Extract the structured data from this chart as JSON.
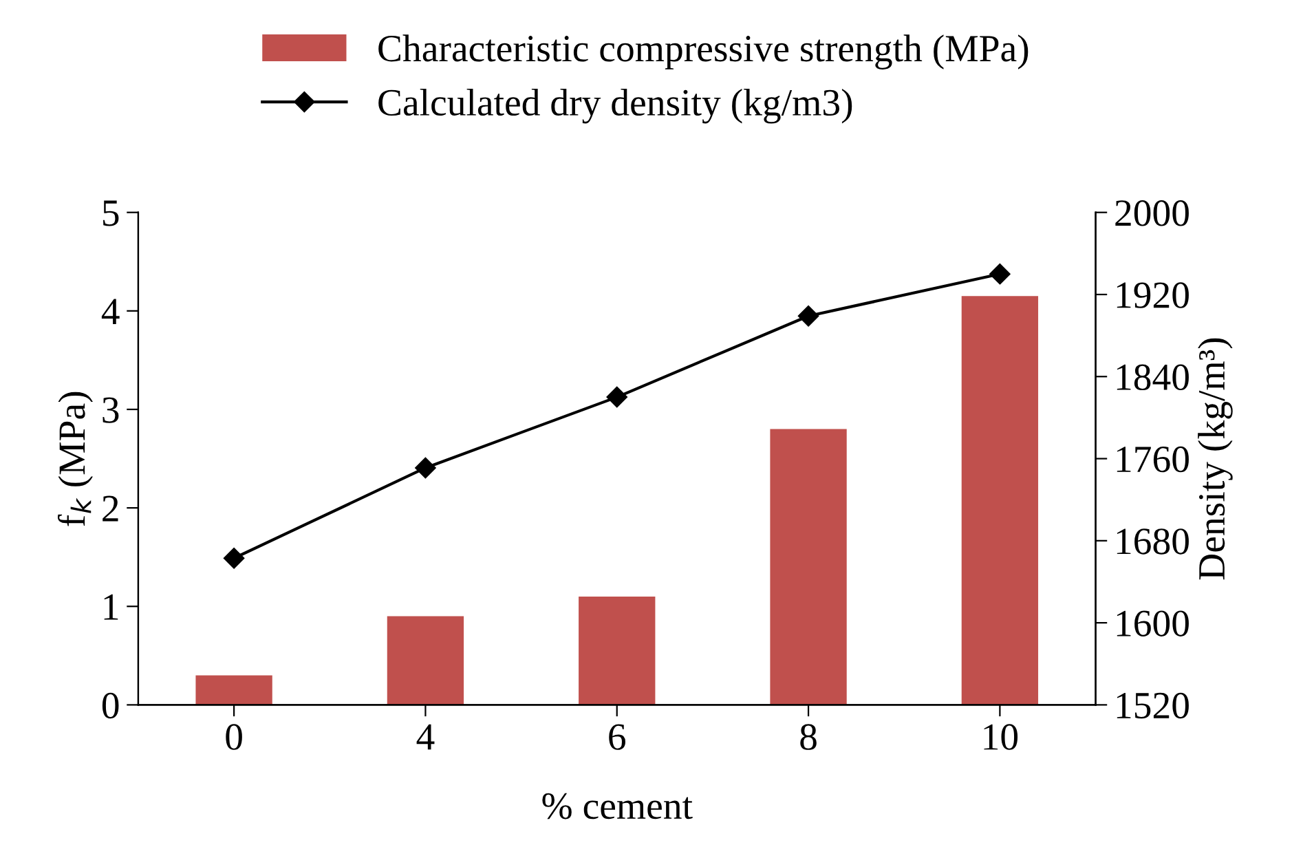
{
  "chart_data": {
    "type": "bar",
    "xlabel": "% cement",
    "ylabel": "f$_{k}$ (MPa)",
    "y2label": "Density (kg/m³)",
    "categories": [
      "0",
      "4",
      "6",
      "8",
      "10"
    ],
    "series": [
      {
        "name": "Characteristic compressive strength (MPa)",
        "color": "#c0504d",
        "values": [
          0.3,
          0.9,
          1.1,
          2.8,
          4.15
        ]
      },
      {
        "name": "Calculated dry density (kg/m3)",
        "type": "line",
        "axis": "y2",
        "color": "#000000",
        "marker": "diamond",
        "values": [
          1663,
          1751,
          1820,
          1899,
          1940
        ]
      }
    ],
    "ylim": [
      0,
      5
    ],
    "yticks": [
      0,
      1,
      2,
      3,
      4,
      5
    ],
    "y2lim": [
      1520,
      2000
    ],
    "y2ticks": [
      1520,
      1600,
      1680,
      1760,
      1840,
      1920,
      2000
    ],
    "grid": false,
    "legend": "top"
  }
}
